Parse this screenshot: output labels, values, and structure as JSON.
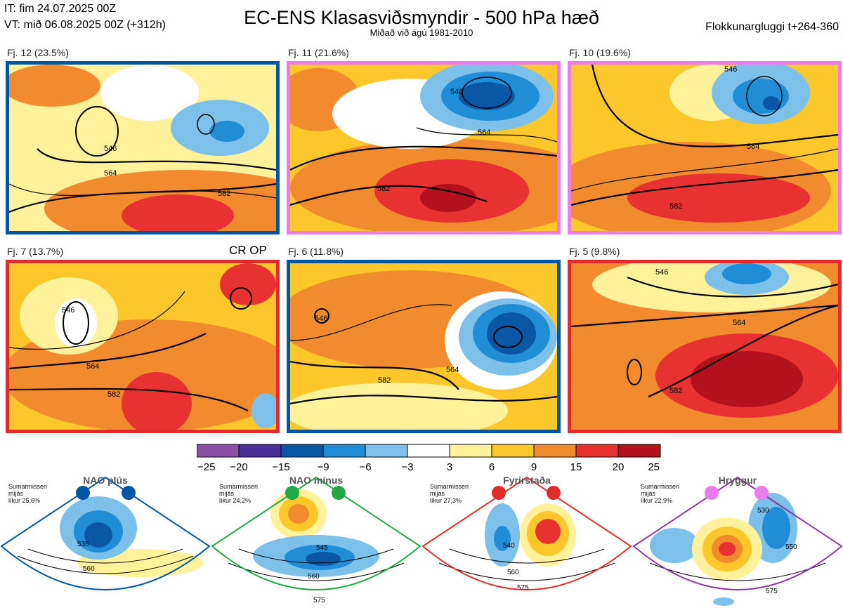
{
  "header": {
    "it_line": "IT: fim 24.07.2025 00Z",
    "vt_line": "VT: mið 06.08.2025 00Z  (+312h)",
    "title": "EC-ENS Klasasviðsmyndir - 500 hPa hæð",
    "subtitle": "Miðað við ágú 1981-2010",
    "window": "Flokkunargluggi t+264-360"
  },
  "panels": [
    {
      "label": "Fj. 12 (23.5%)",
      "frame_color": "#0055a5",
      "contours": [
        "546",
        "564",
        "582",
        "546",
        "564",
        "582"
      ],
      "extra": ""
    },
    {
      "label": "Fj. 11 (21.6%)",
      "frame_color": "#ee7bee",
      "contours": [
        "546",
        "564",
        "582",
        "546",
        "564",
        "582"
      ],
      "extra": ""
    },
    {
      "label": "Fj. 10 (19.6%)",
      "frame_color": "#ee7bee",
      "contours": [
        "546",
        "564",
        "582",
        "546",
        "564",
        "582"
      ],
      "extra": ""
    },
    {
      "label": "Fj. 7 (13.7%)",
      "frame_color": "#e32b2b",
      "contours": [
        "546",
        "564",
        "582",
        "546",
        "564",
        "582"
      ],
      "extra": "CR OP"
    },
    {
      "label": "Fj. 6 (11.8%)",
      "frame_color": "#0055a5",
      "contours": [
        "546",
        "564",
        "582",
        "546",
        "564",
        "582"
      ],
      "extra": ""
    },
    {
      "label": "Fj. 5 (9.8%)",
      "frame_color": "#e32b2b",
      "contours": [
        "546",
        "564",
        "582",
        "546",
        "564",
        "582"
      ],
      "extra": ""
    }
  ],
  "colorbar": {
    "ticks": [
      "−25",
      "−20",
      "−15",
      "−9",
      "−6",
      "−3",
      "3",
      "6",
      "9",
      "15",
      "20",
      "25"
    ],
    "colors": [
      "#8b4fa3",
      "#4a2f99",
      "#0a57a5",
      "#1f8ed6",
      "#7dc0ea",
      "#ffffff",
      "#fff29a",
      "#fcc72b",
      "#f28a2e",
      "#e83131",
      "#b3121c"
    ]
  },
  "regimes": [
    {
      "name": "NAO plús",
      "season": "Sumarmisseri",
      "mean": "mijás",
      "prob": "líkur 25,6%",
      "color": "#0055a5",
      "contours": [
        "535",
        "560"
      ]
    },
    {
      "name": "NAO mínus",
      "season": "Sumarmisseri",
      "mean": "mijás",
      "prob": "líkur 24,2%",
      "color": "#22a845",
      "contours": [
        "545",
        "560",
        "575"
      ]
    },
    {
      "name": "Fyrirstaða",
      "season": "Sumarmisseri",
      "mean": "mijás",
      "prob": "líkur 27,3%",
      "color": "#e32b2b",
      "contours": [
        "540",
        "560",
        "575"
      ]
    },
    {
      "name": "Hryggur",
      "season": "Sumarmisseri",
      "mean": "mijás",
      "prob": "líkur 22,9%",
      "color": "#ee7bee",
      "frame_color": "#8a3a9e",
      "contours": [
        "530",
        "550",
        "575"
      ]
    }
  ]
}
